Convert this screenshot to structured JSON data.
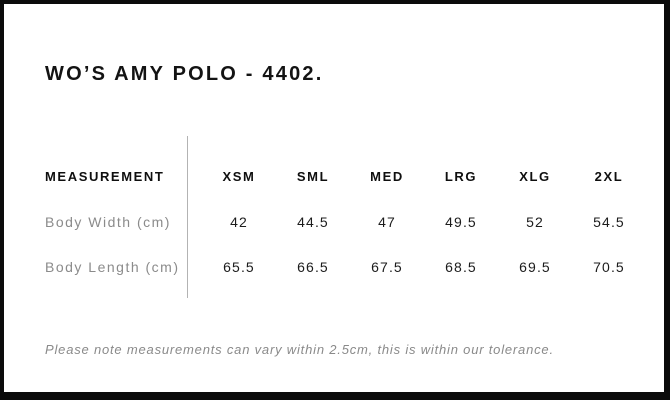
{
  "page": {
    "title": "WO’S AMY POLO - 4402.",
    "note": "Please note measurements can vary within 2.5cm, this is within our tolerance."
  },
  "table": {
    "measurement_header": "MEASUREMENT",
    "size_headers": [
      "XSM",
      "SML",
      "MED",
      "LRG",
      "XLG",
      "2XL"
    ],
    "rows": [
      {
        "label": "Body Width (cm)",
        "values": [
          "42",
          "44.5",
          "47",
          "49.5",
          "52",
          "54.5"
        ]
      },
      {
        "label": "Body Length (cm)",
        "values": [
          "65.5",
          "66.5",
          "67.5",
          "68.5",
          "69.5",
          "70.5"
        ]
      }
    ]
  },
  "colors": {
    "border": "#0b0b0b",
    "title_text": "#131313",
    "header_text": "#0f0f0f",
    "label_text": "#8b8b8b",
    "value_text": "#1c1c1c",
    "divider": "#b3b3b3",
    "note_text": "#8a8a8a",
    "background": "#ffffff"
  },
  "chart_data": {
    "type": "table",
    "title": "WO’S AMY POLO - 4402.",
    "columns": [
      "MEASUREMENT",
      "XSM",
      "SML",
      "MED",
      "LRG",
      "XLG",
      "2XL"
    ],
    "rows": [
      [
        "Body Width (cm)",
        42,
        44.5,
        47,
        49.5,
        52,
        54.5
      ],
      [
        "Body Length (cm)",
        65.5,
        66.5,
        67.5,
        68.5,
        69.5,
        70.5
      ]
    ],
    "note": "Please note measurements can vary within 2.5cm, this is within our tolerance.",
    "layout": {
      "measurement_column_divider": true,
      "size_values_alignment": "center"
    }
  }
}
